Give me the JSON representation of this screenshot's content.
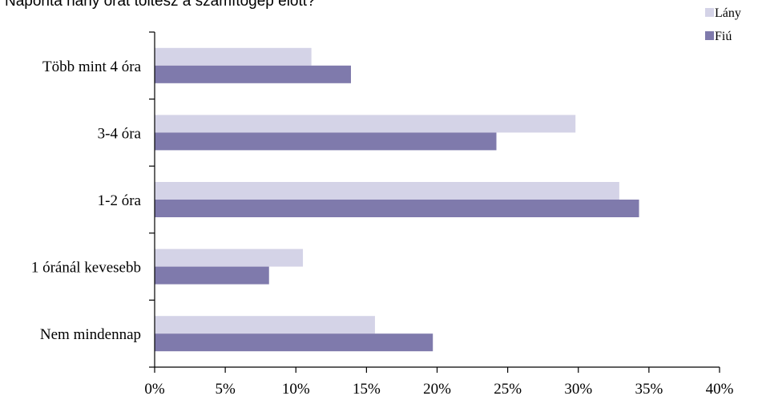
{
  "chart_data": {
    "type": "bar",
    "orientation": "horizontal",
    "title": "Naponta hány órát töltesz a számítógép előtt?",
    "categories": [
      "Több mint 4 óra",
      "3-4 óra",
      "1-2 óra",
      "1 óránál kevesebb",
      "Nem mindennap"
    ],
    "series": [
      {
        "name": "Lány",
        "color": "#d4d3e7",
        "values": [
          11.1,
          29.8,
          32.9,
          10.5,
          15.6
        ]
      },
      {
        "name": "Fiú",
        "color": "#7f7aac",
        "values": [
          13.9,
          24.2,
          34.3,
          8.1,
          19.7
        ]
      }
    ],
    "xlim": [
      0,
      40
    ],
    "xticks": [
      "0%",
      "5%",
      "10%",
      "15%",
      "20%",
      "25%",
      "30%",
      "35%",
      "40%"
    ],
    "grid": false,
    "legend_position": "top-right"
  }
}
